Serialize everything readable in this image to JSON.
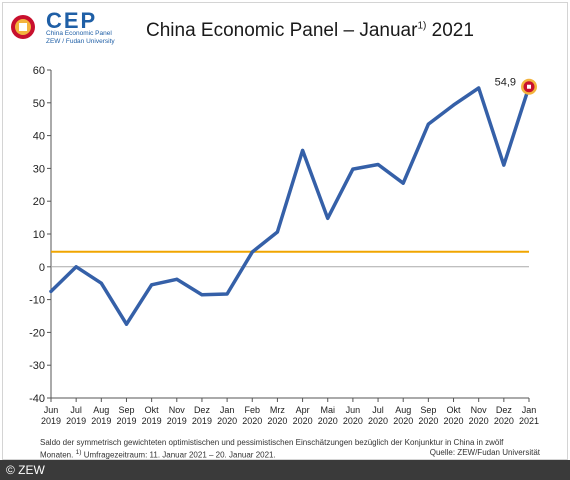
{
  "header": {
    "logo_name": "CEP",
    "logo_sub1": "China Economic Panel",
    "logo_sub2": "ZEW / Fudan University",
    "title_main": "China Economic Panel – Januar",
    "title_sup": "1)",
    "title_year": " 2021"
  },
  "footer": {
    "note_line1": "Saldo der symmetrisch gewichteten optimistischen und pessimistischen Einschätzungen bezüglich der Konjunktur in China in zwölf",
    "note_line2": "Monaten.",
    "note_sup": "1)",
    "note_line2_rest": " Umfragezeitraum: 11. Januar 2021 – 20. Januar 2021.",
    "source": "Quelle: ZEW/Fudan Universität",
    "copyright": "© ZEW"
  },
  "colors": {
    "line": "#3560a8",
    "reference": "#f0a500",
    "zero": "#aaaaaa",
    "marker_fill": "#c8102e",
    "marker_ring": "#f3b33d"
  },
  "icons": {
    "logo": "cep-logo-icon"
  },
  "chart_data": {
    "type": "line",
    "title": "",
    "xlabel": "",
    "ylabel": "",
    "ylim": [
      -40,
      60
    ],
    "yticks": [
      60,
      50,
      40,
      30,
      20,
      10,
      0,
      -10,
      -20,
      -30,
      -40
    ],
    "grid": false,
    "categories": [
      {
        "m": "Jun",
        "y": "2019"
      },
      {
        "m": "Jul",
        "y": "2019"
      },
      {
        "m": "Aug",
        "y": "2019"
      },
      {
        "m": "Sep",
        "y": "2019"
      },
      {
        "m": "Okt",
        "y": "2019"
      },
      {
        "m": "Nov",
        "y": "2019"
      },
      {
        "m": "Dez",
        "y": "2019"
      },
      {
        "m": "Jan",
        "y": "2020"
      },
      {
        "m": "Feb",
        "y": "2020"
      },
      {
        "m": "Mrz",
        "y": "2020"
      },
      {
        "m": "Apr",
        "y": "2020"
      },
      {
        "m": "Mai",
        "y": "2020"
      },
      {
        "m": "Jun",
        "y": "2020"
      },
      {
        "m": "Jul",
        "y": "2020"
      },
      {
        "m": "Aug",
        "y": "2020"
      },
      {
        "m": "Sep",
        "y": "2020"
      },
      {
        "m": "Okt",
        "y": "2020"
      },
      {
        "m": "Nov",
        "y": "2020"
      },
      {
        "m": "Dez",
        "y": "2020"
      },
      {
        "m": "Jan",
        "y": "2021"
      }
    ],
    "values": [
      -7.5,
      0,
      -5,
      -17.5,
      -5.5,
      -3.8,
      -8.5,
      -8.3,
      4.5,
      10.6,
      35.5,
      14.8,
      29.8,
      31.2,
      25.5,
      43.5,
      49.3,
      54.5,
      31.0,
      54.9
    ],
    "reference_value": 4.6,
    "last_label": "54,9"
  }
}
